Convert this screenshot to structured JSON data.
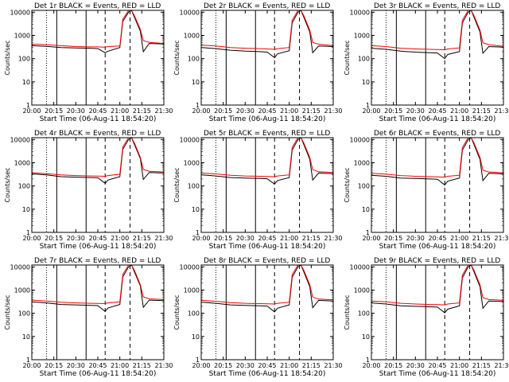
{
  "chart_data": [
    {
      "type": "line",
      "title": "Det 1r  BLACK = Events, RED = LLD",
      "ylabel": "Counts/sec",
      "xlabel": "Start Time (06-Aug-11 18:54:20)",
      "yscale": "log",
      "ylim": [
        1,
        12000
      ],
      "xticks": [
        "20:00",
        "20:15",
        "20:30",
        "20:45",
        "21:00",
        "21:15",
        "21:30"
      ],
      "yticks": [
        "1",
        "10",
        "100",
        "1000",
        "10000"
      ],
      "series": [
        {
          "color": "#000000",
          "x": [
            "20:00",
            "20:10",
            "20:20",
            "20:30",
            "20:40",
            "20:45",
            "20:50",
            "20:52",
            "21:00",
            "21:02",
            "21:06",
            "21:08",
            "21:10",
            "21:14",
            "21:16",
            "21:20",
            "21:30"
          ],
          "y": [
            360,
            340,
            300,
            290,
            280,
            270,
            180,
            210,
            300,
            4000,
            10000,
            12000,
            6000,
            1500,
            200,
            450,
            430
          ]
        },
        {
          "color": "#ff0000",
          "x": [
            "20:00",
            "20:10",
            "20:20",
            "20:30",
            "20:40",
            "20:45",
            "20:50",
            "20:52",
            "21:00",
            "21:02",
            "21:06",
            "21:08",
            "21:10",
            "21:14",
            "21:16",
            "21:20",
            "21:30"
          ],
          "y": [
            420,
            400,
            360,
            330,
            320,
            320,
            310,
            330,
            350,
            5000,
            12000,
            12000,
            7000,
            1800,
            600,
            500,
            450
          ]
        }
      ]
    },
    {
      "type": "line",
      "title": "Det 2r  BLACK = Events, RED = LLD",
      "ylabel": "Counts/sec",
      "xlabel": "Start Time (06-Aug-11 18:54:20)",
      "yscale": "log",
      "ylim": [
        1,
        12000
      ],
      "xticks": [
        "20:00",
        "20:15",
        "20:30",
        "20:45",
        "21:00",
        "21:15",
        "21:30"
      ],
      "yticks": [
        "1",
        "10",
        "100",
        "1000",
        "10000"
      ],
      "series": [
        {
          "color": "#000000",
          "x": [
            "20:00",
            "20:10",
            "20:20",
            "20:30",
            "20:40",
            "20:45",
            "20:50",
            "20:52",
            "21:00",
            "21:02",
            "21:06",
            "21:08",
            "21:10",
            "21:14",
            "21:16",
            "21:20",
            "21:30"
          ],
          "y": [
            300,
            270,
            230,
            210,
            200,
            190,
            110,
            160,
            220,
            3500,
            10000,
            12000,
            6000,
            1400,
            180,
            350,
            330
          ]
        },
        {
          "color": "#ff0000",
          "x": [
            "20:00",
            "20:10",
            "20:20",
            "20:30",
            "20:40",
            "20:45",
            "20:50",
            "20:52",
            "21:00",
            "21:02",
            "21:06",
            "21:08",
            "21:10",
            "21:14",
            "21:16",
            "21:20",
            "21:30"
          ],
          "y": [
            380,
            350,
            300,
            280,
            270,
            260,
            250,
            270,
            300,
            4500,
            12000,
            12000,
            7000,
            1700,
            500,
            420,
            360
          ]
        }
      ]
    },
    {
      "type": "line",
      "title": "Det 3r  BLACK = Events, RED = LLD",
      "ylabel": "Counts/sec",
      "xlabel": "Start Time (06-Aug-11 18:54:20)",
      "yscale": "log",
      "ylim": [
        1,
        12000
      ],
      "xticks": [
        "20:00",
        "20:15",
        "20:30",
        "20:45",
        "21:00",
        "21:15",
        "21:30"
      ],
      "yticks": [
        "1",
        "10",
        "100",
        "1000",
        "10000"
      ],
      "series": [
        {
          "color": "#000000",
          "x": [
            "20:00",
            "20:10",
            "20:20",
            "20:30",
            "20:40",
            "20:45",
            "20:50",
            "20:52",
            "21:00",
            "21:02",
            "21:06",
            "21:08",
            "21:10",
            "21:14",
            "21:16",
            "21:20",
            "21:30"
          ],
          "y": [
            280,
            250,
            210,
            190,
            180,
            175,
            100,
            150,
            200,
            3500,
            10000,
            12000,
            6000,
            1400,
            170,
            330,
            310
          ]
        },
        {
          "color": "#ff0000",
          "x": [
            "20:00",
            "20:10",
            "20:20",
            "20:30",
            "20:40",
            "20:45",
            "20:50",
            "20:52",
            "21:00",
            "21:02",
            "21:06",
            "21:08",
            "21:10",
            "21:14",
            "21:16",
            "21:20",
            "21:30"
          ],
          "y": [
            360,
            330,
            280,
            260,
            250,
            245,
            240,
            260,
            290,
            4500,
            12000,
            12000,
            7000,
            1700,
            480,
            400,
            340
          ]
        }
      ]
    },
    {
      "type": "line",
      "title": "Det 4r  BLACK = Events, RED = LLD",
      "ylabel": "Counts/sec",
      "xlabel": "Start Time (06-Aug-11 18:54:20)",
      "yscale": "log",
      "ylim": [
        1,
        12000
      ],
      "xticks": [
        "20:00",
        "20:15",
        "20:30",
        "20:45",
        "21:00",
        "21:15",
        "21:30"
      ],
      "yticks": [
        "1",
        "10",
        "100",
        "1000",
        "10000"
      ],
      "series": [
        {
          "color": "#000000",
          "x": [
            "20:00",
            "20:10",
            "20:20",
            "20:30",
            "20:40",
            "20:45",
            "20:50",
            "20:52",
            "21:00",
            "21:02",
            "21:06",
            "21:08",
            "21:10",
            "21:14",
            "21:16",
            "21:20",
            "21:30"
          ],
          "y": [
            330,
            300,
            250,
            240,
            230,
            225,
            130,
            180,
            250,
            3800,
            10000,
            12000,
            6000,
            1500,
            190,
            380,
            360
          ]
        },
        {
          "color": "#ff0000",
          "x": [
            "20:00",
            "20:10",
            "20:20",
            "20:30",
            "20:40",
            "20:45",
            "20:50",
            "20:52",
            "21:00",
            "21:02",
            "21:06",
            "21:08",
            "21:10",
            "21:14",
            "21:16",
            "21:20",
            "21:30"
          ],
          "y": [
            370,
            340,
            300,
            280,
            270,
            265,
            260,
            280,
            320,
            4800,
            12000,
            12000,
            7000,
            1700,
            520,
            430,
            400
          ]
        }
      ]
    },
    {
      "type": "line",
      "title": "Det 5r  BLACK = Events, RED = LLD",
      "ylabel": "Counts/sec",
      "xlabel": "Start Time (06-Aug-11 18:54:20)",
      "yscale": "log",
      "ylim": [
        1,
        12000
      ],
      "xticks": [
        "20:00",
        "20:15",
        "20:30",
        "20:45",
        "21:00",
        "21:15",
        "21:30"
      ],
      "yticks": [
        "1",
        "10",
        "100",
        "1000",
        "10000"
      ],
      "series": [
        {
          "color": "#000000",
          "x": [
            "20:00",
            "20:10",
            "20:20",
            "20:30",
            "20:40",
            "20:45",
            "20:50",
            "20:52",
            "21:00",
            "21:02",
            "21:06",
            "21:08",
            "21:10",
            "21:14",
            "21:16",
            "21:20",
            "21:30"
          ],
          "y": [
            300,
            270,
            230,
            220,
            210,
            205,
            120,
            170,
            230,
            3600,
            10000,
            12000,
            6000,
            1400,
            180,
            360,
            340
          ]
        },
        {
          "color": "#ff0000",
          "x": [
            "20:00",
            "20:10",
            "20:20",
            "20:30",
            "20:40",
            "20:45",
            "20:50",
            "20:52",
            "21:00",
            "21:02",
            "21:06",
            "21:08",
            "21:10",
            "21:14",
            "21:16",
            "21:20",
            "21:30"
          ],
          "y": [
            360,
            330,
            290,
            270,
            260,
            255,
            250,
            270,
            300,
            4600,
            12000,
            12000,
            7000,
            1700,
            500,
            410,
            380
          ]
        }
      ]
    },
    {
      "type": "line",
      "title": "Det 6r  BLACK = Events, RED = LLD",
      "ylabel": "Counts/sec",
      "xlabel": "Start Time (06-Aug-11 18:54:20)",
      "yscale": "log",
      "ylim": [
        1,
        12000
      ],
      "xticks": [
        "20:00",
        "20:15",
        "20:30",
        "20:45",
        "21:00",
        "21:15",
        "21:30"
      ],
      "yticks": [
        "1",
        "10",
        "100",
        "1000",
        "10000"
      ],
      "series": [
        {
          "color": "#000000",
          "x": [
            "20:00",
            "20:10",
            "20:20",
            "20:30",
            "20:40",
            "20:45",
            "20:50",
            "20:52",
            "21:00",
            "21:02",
            "21:06",
            "21:08",
            "21:10",
            "21:14",
            "21:16",
            "21:20",
            "21:30"
          ],
          "y": [
            290,
            260,
            220,
            210,
            200,
            195,
            110,
            160,
            220,
            3500,
            10000,
            12000,
            6000,
            1400,
            170,
            350,
            330
          ]
        },
        {
          "color": "#ff0000",
          "x": [
            "20:00",
            "20:10",
            "20:20",
            "20:30",
            "20:40",
            "20:45",
            "20:50",
            "20:52",
            "21:00",
            "21:02",
            "21:06",
            "21:08",
            "21:10",
            "21:14",
            "21:16",
            "21:20",
            "21:30"
          ],
          "y": [
            350,
            320,
            280,
            260,
            250,
            245,
            240,
            260,
            290,
            4500,
            12000,
            12000,
            7000,
            1700,
            480,
            400,
            370
          ]
        }
      ]
    },
    {
      "type": "line",
      "title": "Det 7r  BLACK = Events, RED = LLD",
      "ylabel": "Counts/sec",
      "xlabel": "Start Time (06-Aug-11 18:54:20)",
      "yscale": "log",
      "ylim": [
        1,
        12000
      ],
      "xticks": [
        "20:00",
        "20:15",
        "20:30",
        "20:45",
        "21:00",
        "21:15",
        "21:30"
      ],
      "yticks": [
        "1",
        "10",
        "100",
        "1000",
        "10000"
      ],
      "series": [
        {
          "color": "#000000",
          "x": [
            "20:00",
            "20:10",
            "20:20",
            "20:30",
            "20:40",
            "20:45",
            "20:50",
            "20:52",
            "21:00",
            "21:02",
            "21:06",
            "21:08",
            "21:10",
            "21:14",
            "21:16",
            "21:20",
            "21:30"
          ],
          "y": [
            310,
            280,
            240,
            230,
            220,
            215,
            120,
            170,
            240,
            3700,
            10000,
            12000,
            6000,
            1500,
            180,
            370,
            350
          ]
        },
        {
          "color": "#ff0000",
          "x": [
            "20:00",
            "20:10",
            "20:20",
            "20:30",
            "20:40",
            "20:45",
            "20:50",
            "20:52",
            "21:00",
            "21:02",
            "21:06",
            "21:08",
            "21:10",
            "21:14",
            "21:16",
            "21:20",
            "21:30"
          ],
          "y": [
            370,
            340,
            300,
            280,
            270,
            265,
            260,
            280,
            310,
            4700,
            12000,
            12000,
            7000,
            1700,
            510,
            420,
            390
          ]
        }
      ]
    },
    {
      "type": "line",
      "title": "Det 8r  BLACK = Events, RED = LLD",
      "ylabel": "Counts/sec",
      "xlabel": "Start Time (06-Aug-11 18:54:20)",
      "yscale": "log",
      "ylim": [
        1,
        12000
      ],
      "xticks": [
        "20:00",
        "20:15",
        "20:30",
        "20:45",
        "21:00",
        "21:15",
        "21:30"
      ],
      "yticks": [
        "1",
        "10",
        "100",
        "1000",
        "10000"
      ],
      "series": [
        {
          "color": "#000000",
          "x": [
            "20:00",
            "20:10",
            "20:20",
            "20:30",
            "20:40",
            "20:45",
            "20:50",
            "20:52",
            "21:00",
            "21:02",
            "21:06",
            "21:08",
            "21:10",
            "21:14",
            "21:16",
            "21:20",
            "21:30"
          ],
          "y": [
            300,
            270,
            230,
            220,
            210,
            205,
            115,
            165,
            230,
            3600,
            10000,
            12000,
            6000,
            1400,
            175,
            360,
            340
          ]
        },
        {
          "color": "#ff0000",
          "x": [
            "20:00",
            "20:10",
            "20:20",
            "20:30",
            "20:40",
            "20:45",
            "20:50",
            "20:52",
            "21:00",
            "21:02",
            "21:06",
            "21:08",
            "21:10",
            "21:14",
            "21:16",
            "21:20",
            "21:30"
          ],
          "y": [
            360,
            330,
            290,
            270,
            260,
            255,
            250,
            270,
            300,
            4600,
            12000,
            12000,
            7000,
            1700,
            500,
            410,
            380
          ]
        }
      ]
    },
    {
      "type": "line",
      "title": "Det 9r  BLACK = Events, RED = LLD",
      "ylabel": "Counts/sec",
      "xlabel": "Start Time (06-Aug-11 18:54:20)",
      "yscale": "log",
      "ylim": [
        1,
        12000
      ],
      "xticks": [
        "20:00",
        "20:15",
        "20:30",
        "20:45",
        "21:00",
        "21:15",
        "21:30"
      ],
      "yticks": [
        "1",
        "10",
        "100",
        "1000",
        "10000"
      ],
      "series": [
        {
          "color": "#000000",
          "x": [
            "20:00",
            "20:10",
            "20:20",
            "20:30",
            "20:40",
            "20:45",
            "20:50",
            "20:52",
            "21:00",
            "21:02",
            "21:06",
            "21:08",
            "21:10",
            "21:14",
            "21:16",
            "21:20",
            "21:30"
          ],
          "y": [
            280,
            250,
            210,
            200,
            190,
            185,
            105,
            150,
            210,
            3400,
            10000,
            12000,
            6000,
            1400,
            165,
            340,
            320
          ]
        },
        {
          "color": "#ff0000",
          "x": [
            "20:00",
            "20:10",
            "20:20",
            "20:30",
            "20:40",
            "20:45",
            "20:50",
            "20:52",
            "21:00",
            "21:02",
            "21:06",
            "21:08",
            "21:10",
            "21:14",
            "21:16",
            "21:20",
            "21:30"
          ],
          "y": [
            340,
            310,
            270,
            250,
            240,
            235,
            230,
            250,
            280,
            4400,
            12000,
            12000,
            7000,
            1700,
            470,
            390,
            360
          ]
        }
      ]
    }
  ]
}
